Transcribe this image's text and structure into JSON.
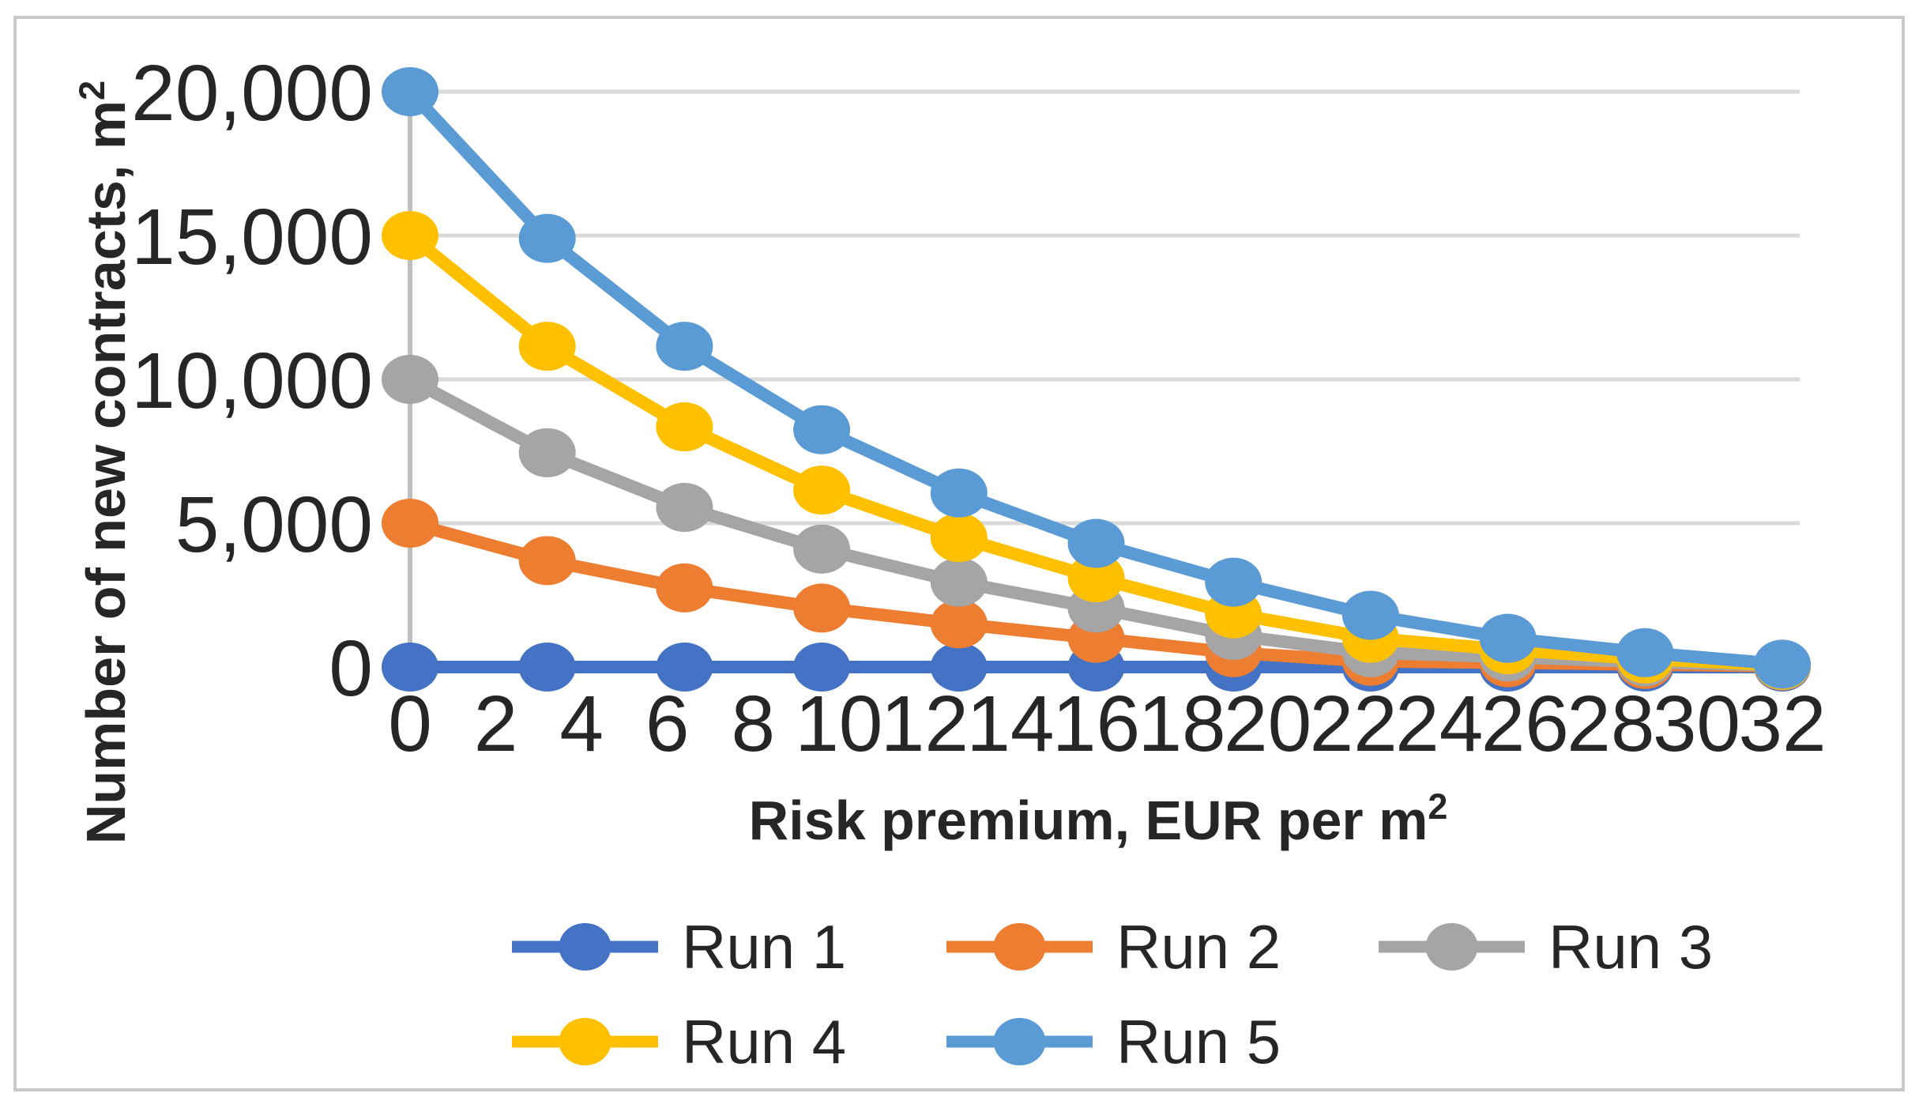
{
  "chart_data": {
    "type": "line",
    "title": "",
    "xlabel": "Risk premium, EUR per m",
    "xlabel_superscript": "2",
    "ylabel": "Number of new contracts, m",
    "ylabel_superscript": "2",
    "xlim": [
      0,
      32
    ],
    "ylim": [
      0,
      20000
    ],
    "x": [
      0,
      3.2,
      6.4,
      9.6,
      12.8,
      16,
      19.2,
      22.4,
      25.6,
      28.8,
      32
    ],
    "x_ticks": {
      "values": [
        0,
        2,
        4,
        6,
        8,
        10,
        12,
        14,
        16,
        18,
        20,
        22,
        24,
        26,
        28,
        30,
        32
      ],
      "labels": [
        "0",
        "2",
        "4",
        "6",
        "8",
        "10",
        "12",
        "14",
        "16",
        "18",
        "20",
        "22",
        "24",
        "26",
        "28",
        "30",
        "32"
      ]
    },
    "y_ticks": {
      "values": [
        0,
        5000,
        10000,
        15000,
        20000
      ],
      "labels": [
        "0",
        "5,000",
        "10,000",
        "15,000",
        "20,000"
      ]
    },
    "grid": "horizontal",
    "legend_position": "bottom",
    "legend_rows": [
      [
        0,
        1,
        2
      ],
      [
        3,
        4
      ]
    ],
    "series": [
      {
        "name": "Run 1",
        "color": "#4472C4",
        "values": [
          0,
          0,
          0,
          0,
          0,
          0,
          0,
          0,
          0,
          0,
          0
        ]
      },
      {
        "name": "Run 2",
        "color": "#ED7D31",
        "values": [
          5000,
          3700,
          2750,
          2050,
          1500,
          1000,
          500,
          200,
          150,
          90,
          30
        ]
      },
      {
        "name": "Run 3",
        "color": "#A5A5A5",
        "values": [
          10000,
          7450,
          5550,
          4100,
          2950,
          2050,
          1100,
          500,
          350,
          180,
          50
        ]
      },
      {
        "name": "Run 4",
        "color": "#FFC000",
        "values": [
          15000,
          11150,
          8350,
          6150,
          4500,
          3100,
          1850,
          1000,
          600,
          280,
          70
        ]
      },
      {
        "name": "Run 5",
        "color": "#5B9BD5",
        "values": [
          20000,
          14900,
          11150,
          8250,
          6050,
          4300,
          2950,
          1800,
          1000,
          500,
          100
        ]
      }
    ],
    "colors": {
      "gridline": "#D9D9D9",
      "axis_line": "#BFBFBF",
      "text": "#262626",
      "frame_border": "#C9C9C9",
      "background": "#FFFFFF"
    }
  }
}
